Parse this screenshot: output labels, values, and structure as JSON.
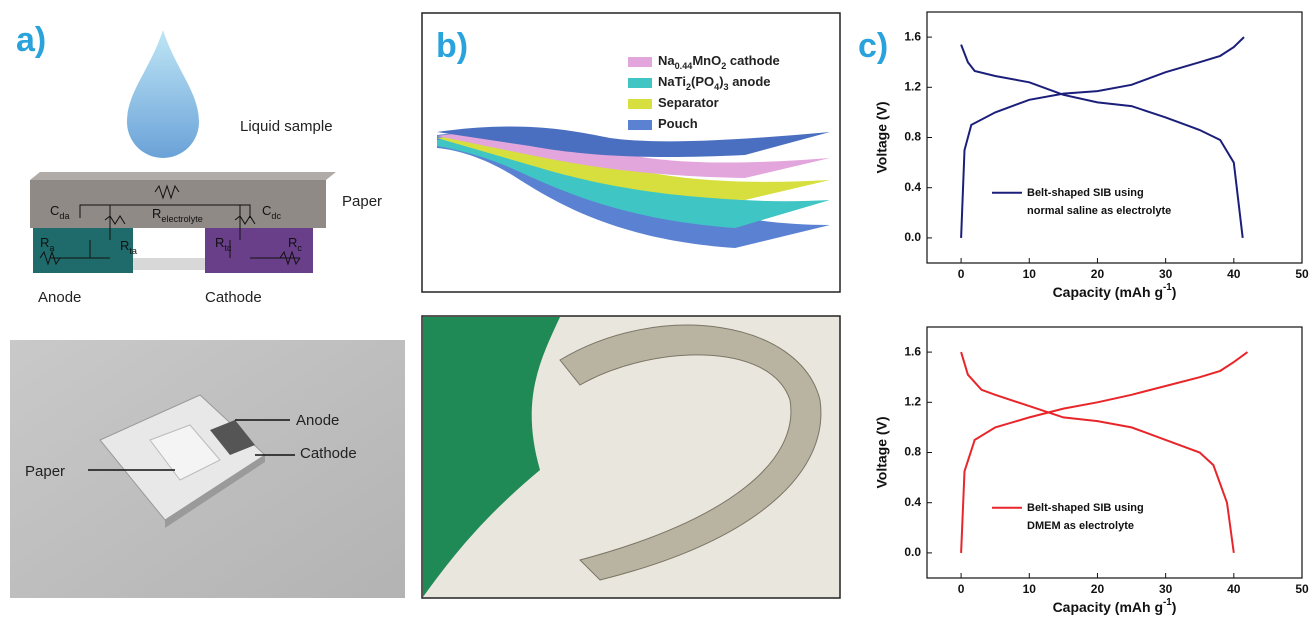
{
  "panel_a": {
    "label": "a)",
    "sample": "Liquid sample",
    "paper": "Paper",
    "circuit": [
      [
        "C",
        "da"
      ],
      [
        "R",
        "electrolyte"
      ],
      [
        "C",
        "dc"
      ],
      [
        "R",
        "a"
      ],
      [
        "R",
        "ta"
      ],
      [
        "R",
        "tc"
      ],
      [
        "R",
        "c"
      ]
    ],
    "anode": "Anode",
    "cathode": "Cathode",
    "photo": {
      "anode": "Anode",
      "cathode": "Cathode",
      "paper": "Paper"
    }
  },
  "panel_b": {
    "label": "b)",
    "legend": [
      {
        "text": [
          "Na",
          "0.44",
          "MnO",
          "2",
          " cathode"
        ],
        "color": "#e3a6dc"
      },
      {
        "text": [
          "NaTi",
          "2",
          "(PO",
          "4",
          ")",
          "3",
          " anode"
        ],
        "color": "#3fc6c4"
      },
      {
        "text": [
          "Separator"
        ],
        "color": "#d6df3e"
      },
      {
        "text": [
          "Pouch"
        ],
        "color": "#5b82d2"
      }
    ]
  },
  "panel_c": {
    "label": "c)"
  },
  "chart_data": [
    {
      "type": "line",
      "x_label": [
        "Capacity (mAh g",
        "-1",
        ")"
      ],
      "y_label": "Voltage (V)",
      "xlim": [
        -5,
        50
      ],
      "ylim": [
        -0.2,
        1.8
      ],
      "xticks": [
        0,
        10,
        20,
        30,
        40,
        50
      ],
      "yticks": [
        {
          "value": 0,
          "label": "0.0"
        },
        0.4,
        0.8,
        1.2,
        1.6
      ],
      "series": [
        {
          "name": "Belt-shaped SIB using normal saline as electrolyte",
          "color": "#1c1f7a",
          "x": [
            0,
            0.5,
            1.5,
            5,
            10,
            15,
            20,
            25,
            30,
            35,
            38,
            40,
            41.5,
            null,
            0,
            1,
            2,
            5,
            10,
            15,
            20,
            25,
            30,
            35,
            38,
            40,
            41.3
          ],
          "values": [
            0,
            0.7,
            0.9,
            1.0,
            1.1,
            1.15,
            1.17,
            1.22,
            1.32,
            1.4,
            1.45,
            1.52,
            1.6,
            null,
            1.54,
            1.4,
            1.33,
            1.29,
            1.24,
            1.14,
            1.08,
            1.05,
            0.96,
            0.86,
            0.78,
            0.6,
            0
          ]
        }
      ]
    },
    {
      "type": "line",
      "x_label": [
        "Capacity (mAh g",
        "-1",
        ")"
      ],
      "y_label": "Voltage (V)",
      "xlim": [
        -5,
        50
      ],
      "ylim": [
        -0.2,
        1.8
      ],
      "xticks": [
        0,
        10,
        20,
        30,
        40,
        50
      ],
      "yticks": [
        {
          "value": 0,
          "label": "0.0"
        },
        0.4,
        0.8,
        1.2,
        1.6
      ],
      "series": [
        {
          "name": "Belt-shaped SIB using DMEM as electrolyte",
          "color": "#e8262a",
          "x": [
            0,
            0.5,
            2,
            5,
            10,
            15,
            20,
            25,
            30,
            35,
            38,
            40,
            42,
            null,
            0,
            1,
            3,
            5,
            10,
            15,
            20,
            25,
            30,
            35,
            37,
            39,
            40
          ],
          "values": [
            0,
            0.65,
            0.9,
            1.0,
            1.08,
            1.15,
            1.2,
            1.26,
            1.33,
            1.4,
            1.45,
            1.52,
            1.6,
            null,
            1.6,
            1.42,
            1.3,
            1.26,
            1.17,
            1.08,
            1.05,
            1.0,
            0.9,
            0.8,
            0.7,
            0.4,
            0
          ]
        }
      ]
    }
  ]
}
